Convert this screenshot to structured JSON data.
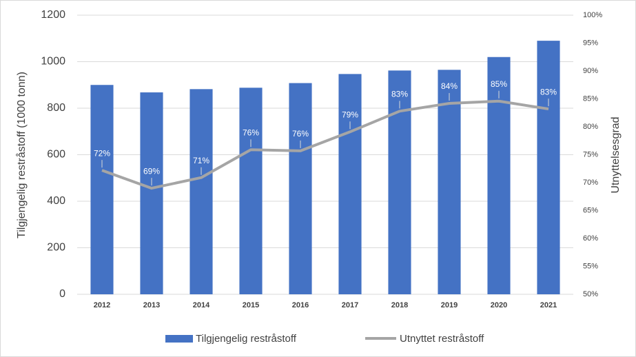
{
  "chart_data": {
    "type": "bar",
    "categories": [
      "2012",
      "2013",
      "2014",
      "2015",
      "2016",
      "2017",
      "2018",
      "2019",
      "2020",
      "2021"
    ],
    "series": [
      {
        "name": "Tilgjengelig restråstoff",
        "type": "bar",
        "color": "#4472c4",
        "values": [
          900,
          868,
          882,
          888,
          908,
          947,
          962,
          965,
          1020,
          1090
        ]
      },
      {
        "name": "Utnyttet restråstoff",
        "type": "line",
        "axis": "y2",
        "color": "#a5a5a5",
        "values": [
          72.2,
          69.0,
          70.9,
          75.9,
          75.7,
          79.1,
          82.8,
          84.2,
          84.6,
          83.2
        ],
        "value_labels": [
          "72%",
          "69%",
          "71%",
          "76%",
          "76%",
          "79%",
          "83%",
          "84%",
          "85%",
          "83%"
        ]
      }
    ],
    "ylabel": "Tilgjengelig restråstoff (1000 tonn)",
    "y2label": "Utnyttelsesgrad",
    "ylim": [
      0,
      1200
    ],
    "yticks": [
      0,
      200,
      400,
      600,
      800,
      1000,
      1200
    ],
    "y2lim": [
      50,
      100
    ],
    "y2ticks": [
      {
        "value": 50,
        "label": "50%"
      },
      {
        "value": 55,
        "label": "55%"
      },
      {
        "value": 60,
        "label": "60%"
      },
      {
        "value": 65,
        "label": "65%"
      },
      {
        "value": 70,
        "label": "70%"
      },
      {
        "value": 75,
        "label": "75%"
      },
      {
        "value": 80,
        "label": "80%"
      },
      {
        "value": 85,
        "label": "85%"
      },
      {
        "value": 90,
        "label": "90%"
      },
      {
        "value": 95,
        "label": "95%"
      },
      {
        "value": 100,
        "label": "100%"
      }
    ],
    "grid": true,
    "legend": "bottom"
  }
}
